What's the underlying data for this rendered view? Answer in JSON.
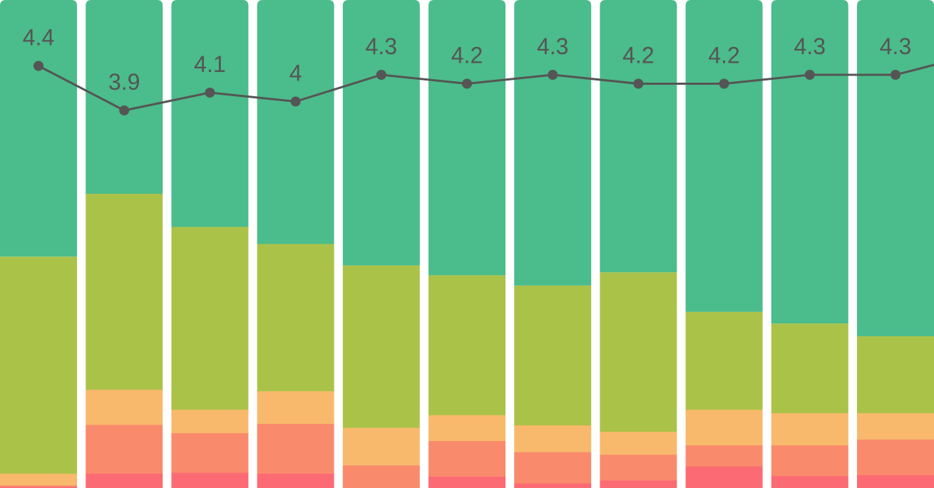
{
  "chart_data": {
    "type": "bar",
    "stacked": true,
    "ylim": [
      0,
      100
    ],
    "grid": false,
    "legend": "none",
    "categories": [
      "",
      "",
      "",
      "",
      "",
      "",
      "",
      "",
      "",
      "",
      ""
    ],
    "series": [
      {
        "color": "#FC6B73",
        "values": [
          0.3,
          3,
          3.2,
          3,
          0,
          2.4,
          1,
          1.6,
          4.5,
          2.5,
          2.7
        ]
      },
      {
        "color": "#FA8A6C",
        "values": [
          0.3,
          10,
          8.1,
          10.2,
          4.7,
          7.3,
          6.4,
          5.3,
          4.3,
          6.3,
          7.3
        ]
      },
      {
        "color": "#F8B96C",
        "values": [
          2.4,
          7.2,
          4.8,
          6.7,
          7.7,
          5.3,
          5.5,
          4.7,
          7.3,
          6.6,
          5.4
        ]
      },
      {
        "color": "#ABC249",
        "values": [
          44.4,
          40.1,
          37.4,
          30.1,
          33.2,
          28.6,
          28.6,
          32.6,
          20.0,
          18.3,
          15.7
        ]
      },
      {
        "color": "#4BBC8B",
        "values": [
          52.6,
          39.7,
          46.5,
          50.0,
          54.4,
          56.4,
          58.5,
          55.8,
          63.9,
          66.3,
          68.9
        ]
      }
    ],
    "line": {
      "color": "#555555",
      "values": [
        4.4,
        3.9,
        4.1,
        4.0,
        4.3,
        4.2,
        4.3,
        4.2,
        4.2,
        4.3,
        4.3
      ],
      "labels": [
        "4.4",
        "3.9",
        "4.1",
        "4",
        "4.3",
        "4.2",
        "4.3",
        "4.2",
        "4.2",
        "4.3",
        "4.3"
      ]
    }
  }
}
